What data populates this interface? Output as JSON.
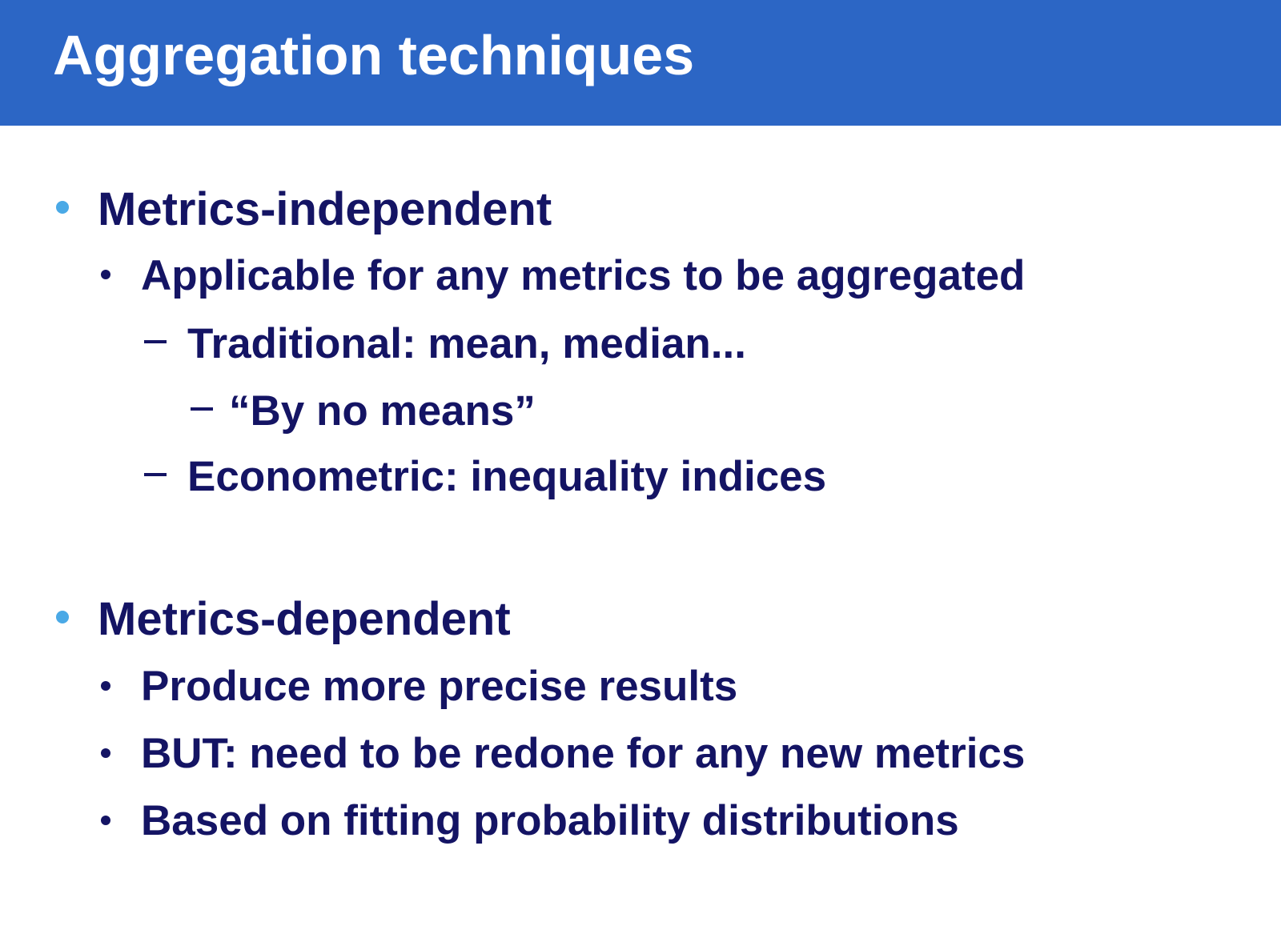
{
  "slide": {
    "title": "Aggregation techniques",
    "sections": [
      {
        "heading": "Metrics-independent",
        "items": [
          "Applicable for any metrics to be aggregated"
        ],
        "subitems": [
          "Traditional: mean, median...",
          "“By no means”",
          "Econometric: inequality indices"
        ]
      },
      {
        "heading": "Metrics-dependent",
        "items": [
          "Produce more precise results",
          "BUT: need to be redone for any new metrics",
          "Based on fitting probability distributions"
        ]
      }
    ]
  },
  "colors": {
    "title_bar": "#2c66c5",
    "title_text": "#ffffff",
    "body_text": "#141464",
    "level1_bullet": "#4aa9e6"
  }
}
